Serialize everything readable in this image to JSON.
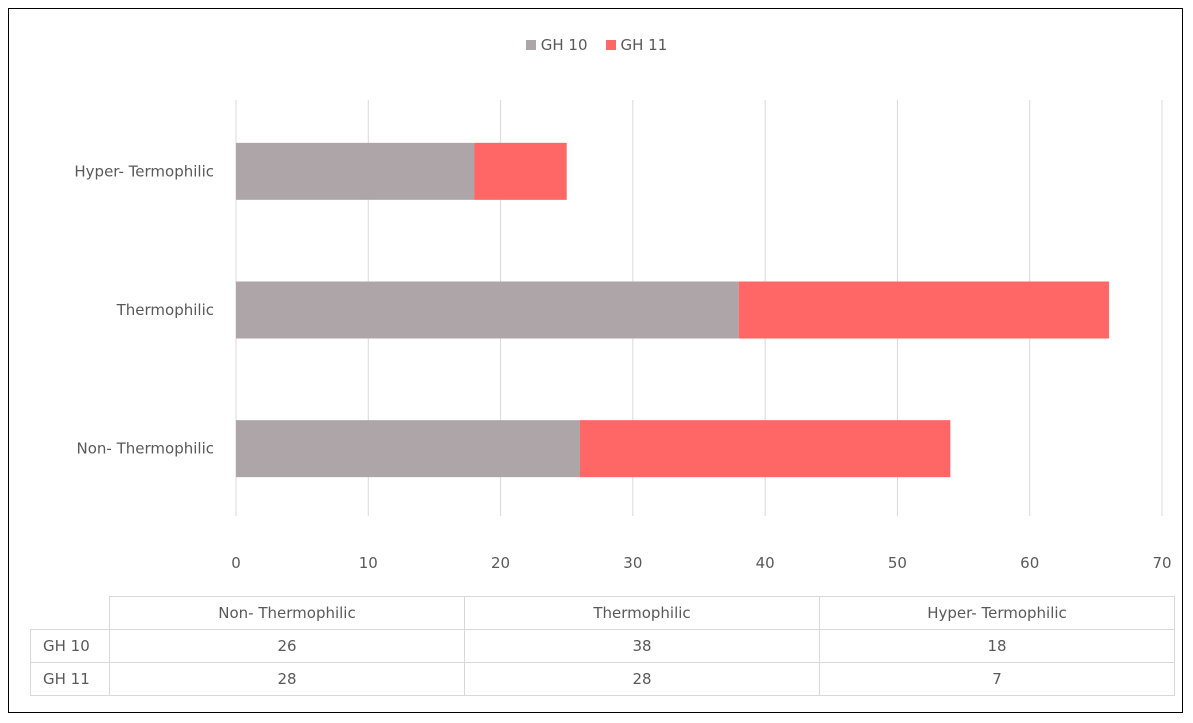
{
  "chart_data": {
    "type": "bar",
    "orientation": "horizontal",
    "stacked": true,
    "categories": [
      "Non- Thermophilic",
      "Thermophilic",
      "Hyper- Termophilic"
    ],
    "series": [
      {
        "name": "GH 10",
        "values": [
          26,
          38,
          18
        ],
        "color": "#ada5a7"
      },
      {
        "name": "GH 11",
        "values": [
          28,
          28,
          7
        ],
        "color": "#ff6666"
      }
    ],
    "x_ticks": [
      "0",
      "10",
      "20",
      "30",
      "40",
      "50",
      "60",
      "70"
    ],
    "xlim": [
      0,
      70
    ],
    "grid": "vertical",
    "legend_position": "top",
    "data_table": true
  },
  "table": {
    "headers": [
      "Non- Thermophilic",
      "Thermophilic",
      "Hyper- Termophilic"
    ],
    "rows": [
      {
        "label": "GH 10",
        "values": [
          "26",
          "38",
          "18"
        ]
      },
      {
        "label": "GH 11",
        "values": [
          "28",
          "28",
          "7"
        ]
      }
    ]
  }
}
